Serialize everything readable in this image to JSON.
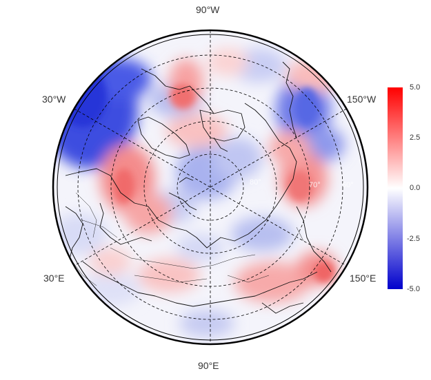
{
  "map": {
    "projection": "north-polar-stereographic",
    "field": "anomaly",
    "longitude_labels": {
      "top": "90°W",
      "bottom": "90°E",
      "upper_left": "30°W",
      "upper_right": "150°W",
      "lower_left": "30°E",
      "lower_right": "150°E"
    },
    "latitude_ring_labels": [
      "60°",
      "70°",
      "80°"
    ],
    "graticule": "dashed"
  },
  "colorbar": {
    "ticks": [
      "5.0",
      "2.5",
      "0.0",
      "-2.5",
      "-5.0"
    ],
    "min": -5.0,
    "max": 5.0,
    "colors": {
      "low": "#0000cc",
      "mid": "#ffffff",
      "high": "#ff0000"
    }
  }
}
